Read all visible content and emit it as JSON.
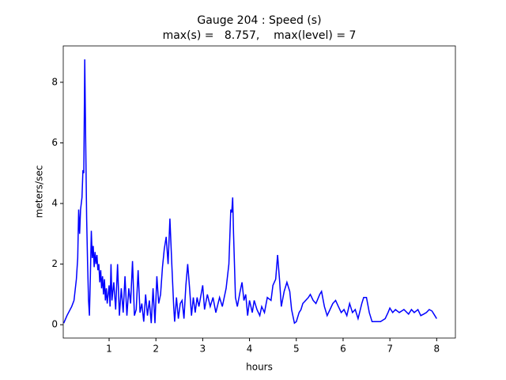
{
  "chart_data": {
    "type": "line",
    "title": "Gauge 204 : Speed (s)",
    "subtitle": "max(s) =   8.757,    max(level) = 7",
    "xlabel": "hours",
    "ylabel": "meters/sec",
    "xlim": [
      0.02,
      8.4
    ],
    "ylim": [
      -0.44,
      9.2
    ],
    "xticks": [
      1,
      2,
      3,
      4,
      5,
      6,
      7,
      8
    ],
    "yticks": [
      0,
      2,
      4,
      6,
      8
    ],
    "x": [
      0.03,
      0.1,
      0.2,
      0.25,
      0.3,
      0.33,
      0.35,
      0.37,
      0.39,
      0.42,
      0.44,
      0.46,
      0.48,
      0.5,
      0.52,
      0.54,
      0.56,
      0.58,
      0.6,
      0.62,
      0.64,
      0.66,
      0.68,
      0.7,
      0.72,
      0.74,
      0.76,
      0.78,
      0.8,
      0.82,
      0.84,
      0.86,
      0.88,
      0.9,
      0.92,
      0.94,
      0.96,
      0.98,
      1.0,
      1.02,
      1.04,
      1.06,
      1.1,
      1.14,
      1.18,
      1.22,
      1.26,
      1.3,
      1.34,
      1.38,
      1.42,
      1.46,
      1.5,
      1.54,
      1.58,
      1.62,
      1.66,
      1.7,
      1.74,
      1.78,
      1.82,
      1.86,
      1.9,
      1.94,
      1.98,
      2.02,
      2.06,
      2.1,
      2.14,
      2.18,
      2.22,
      2.26,
      2.3,
      2.34,
      2.38,
      2.4,
      2.44,
      2.48,
      2.52,
      2.56,
      2.6,
      2.64,
      2.68,
      2.72,
      2.76,
      2.8,
      2.84,
      2.88,
      2.92,
      3.0,
      3.04,
      3.1,
      3.16,
      3.22,
      3.28,
      3.36,
      3.42,
      3.5,
      3.56,
      3.6,
      3.62,
      3.64,
      3.66,
      3.7,
      3.74,
      3.8,
      3.84,
      3.88,
      3.92,
      3.96,
      4.0,
      4.06,
      4.1,
      4.16,
      4.22,
      4.26,
      4.32,
      4.38,
      4.46,
      4.5,
      4.56,
      4.6,
      4.64,
      4.68,
      4.74,
      4.8,
      4.86,
      4.9,
      4.96,
      5.0,
      5.06,
      5.1,
      5.14,
      5.2,
      5.26,
      5.3,
      5.36,
      5.42,
      5.5,
      5.54,
      5.6,
      5.66,
      5.72,
      5.78,
      5.84,
      5.9,
      5.96,
      6.02,
      6.08,
      6.14,
      6.2,
      6.26,
      6.32,
      6.4,
      6.44,
      6.5,
      6.56,
      6.62,
      6.7,
      6.8,
      6.9,
      6.96,
      7.0,
      7.06,
      7.12,
      7.2,
      7.3,
      7.4,
      7.46,
      7.52,
      7.6,
      7.66,
      7.72,
      7.78,
      7.84,
      7.9,
      7.96,
      8.0
    ],
    "series": [
      {
        "name": "speed",
        "color": "#0000ff",
        "values": [
          0.05,
          0.3,
          0.6,
          0.8,
          1.5,
          2.2,
          3.8,
          3.0,
          3.8,
          4.2,
          5.1,
          5.0,
          8.757,
          6.0,
          3.5,
          2.0,
          0.8,
          0.3,
          1.6,
          3.1,
          2.2,
          2.6,
          1.9,
          2.4,
          2.0,
          2.3,
          1.8,
          2.0,
          1.4,
          1.8,
          1.2,
          1.6,
          1.0,
          1.5,
          0.8,
          1.2,
          0.7,
          1.0,
          1.3,
          0.6,
          2.0,
          0.8,
          1.4,
          0.5,
          2.0,
          0.3,
          1.2,
          0.4,
          1.6,
          0.3,
          1.2,
          0.7,
          2.1,
          0.3,
          0.5,
          1.8,
          0.4,
          0.7,
          0.1,
          1.0,
          0.3,
          0.8,
          0.05,
          1.2,
          0.05,
          1.6,
          0.7,
          1.0,
          1.9,
          2.5,
          2.9,
          2.0,
          3.5,
          2.0,
          0.6,
          0.1,
          0.9,
          0.2,
          0.7,
          0.8,
          0.2,
          1.3,
          2.0,
          1.2,
          0.3,
          0.9,
          0.4,
          0.9,
          0.6,
          1.3,
          0.5,
          1.0,
          0.6,
          0.9,
          0.4,
          0.9,
          0.6,
          1.2,
          2.0,
          3.8,
          3.7,
          4.2,
          3.0,
          0.9,
          0.6,
          1.1,
          1.4,
          0.8,
          1.0,
          0.3,
          0.8,
          0.4,
          0.8,
          0.5,
          0.3,
          0.6,
          0.4,
          0.9,
          0.8,
          1.3,
          1.5,
          2.3,
          1.5,
          0.6,
          1.1,
          1.4,
          1.1,
          0.5,
          0.05,
          0.1,
          0.4,
          0.5,
          0.7,
          0.8,
          0.9,
          1.0,
          0.8,
          0.7,
          1.0,
          1.1,
          0.6,
          0.3,
          0.5,
          0.7,
          0.8,
          0.6,
          0.4,
          0.5,
          0.3,
          0.7,
          0.4,
          0.5,
          0.2,
          0.7,
          0.9,
          0.9,
          0.4,
          0.1,
          0.1,
          0.1,
          0.2,
          0.4,
          0.55,
          0.4,
          0.5,
          0.4,
          0.5,
          0.35,
          0.5,
          0.4,
          0.5,
          0.3,
          0.35,
          0.4,
          0.5,
          0.45,
          0.3,
          0.2
        ]
      }
    ]
  }
}
